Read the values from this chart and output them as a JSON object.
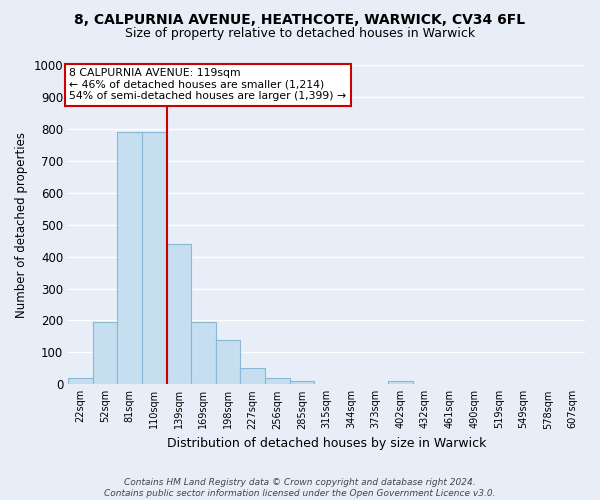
{
  "title": "8, CALPURNIA AVENUE, HEATHCOTE, WARWICK, CV34 6FL",
  "subtitle": "Size of property relative to detached houses in Warwick",
  "xlabel": "Distribution of detached houses by size in Warwick",
  "ylabel": "Number of detached properties",
  "bar_labels": [
    "22sqm",
    "52sqm",
    "81sqm",
    "110sqm",
    "139sqm",
    "169sqm",
    "198sqm",
    "227sqm",
    "256sqm",
    "285sqm",
    "315sqm",
    "344sqm",
    "373sqm",
    "402sqm",
    "432sqm",
    "461sqm",
    "490sqm",
    "519sqm",
    "549sqm",
    "578sqm",
    "607sqm"
  ],
  "bar_values": [
    20,
    195,
    790,
    790,
    440,
    195,
    140,
    50,
    20,
    10,
    0,
    0,
    0,
    10,
    0,
    0,
    0,
    0,
    0,
    0,
    0
  ],
  "bar_color": "#c5dff0",
  "bar_edge_color": "#8ab8d4",
  "marker_color": "#cc0000",
  "annotation_text": "8 CALPURNIA AVENUE: 119sqm\n← 46% of detached houses are smaller (1,214)\n54% of semi-detached houses are larger (1,399) →",
  "annotation_box_color": "#ffffff",
  "annotation_box_edge": "#cc0000",
  "ylim": [
    0,
    1000
  ],
  "yticks": [
    0,
    100,
    200,
    300,
    400,
    500,
    600,
    700,
    800,
    900,
    1000
  ],
  "footer": "Contains HM Land Registry data © Crown copyright and database right 2024.\nContains public sector information licensed under the Open Government Licence v3.0.",
  "bg_color": "#e8eef8",
  "grid_color": "#ffffff"
}
